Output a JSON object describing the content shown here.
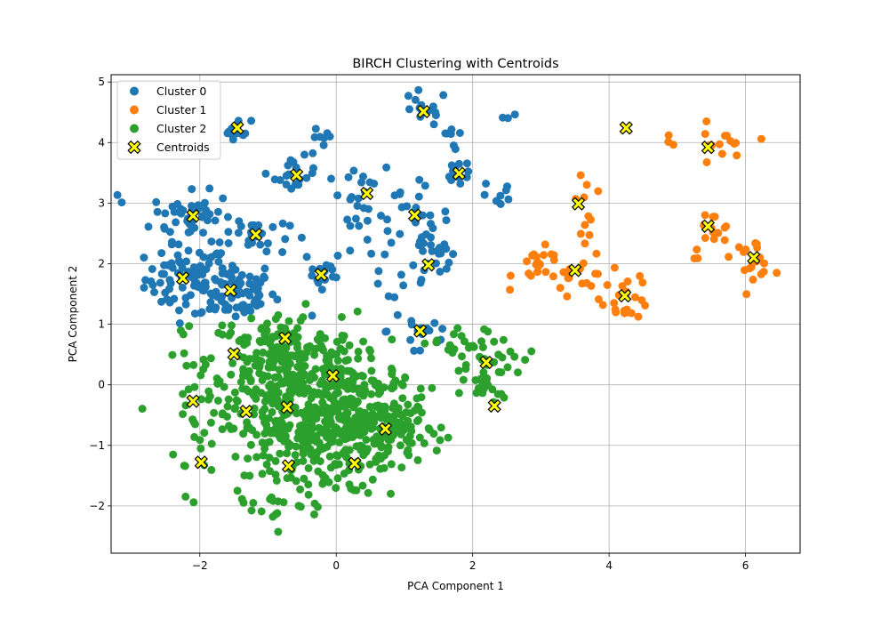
{
  "chart_data": {
    "type": "scatter",
    "title": "BIRCH Clustering with Centroids",
    "xlabel": "PCA Component 1",
    "ylabel": "PCA Component 2",
    "xlim": [
      -3.3,
      6.8
    ],
    "ylim": [
      -2.78,
      5.12
    ],
    "xticks": [
      -2,
      0,
      2,
      4,
      6
    ],
    "yticks": [
      -2,
      -1,
      0,
      1,
      2,
      3,
      4,
      5
    ],
    "grid": true,
    "legend_position": "top-left",
    "series": [
      {
        "name": "Cluster 0",
        "color": "#1f77b4",
        "groups": [
          {
            "cx": -2.2,
            "cy": 1.75,
            "sx": 0.3,
            "sy": 0.28,
            "n": 70
          },
          {
            "cx": -1.5,
            "cy": 1.55,
            "sx": 0.3,
            "sy": 0.25,
            "n": 80
          },
          {
            "cx": -2.1,
            "cy": 2.78,
            "sx": 0.3,
            "sy": 0.2,
            "n": 55
          },
          {
            "cx": -1.2,
            "cy": 2.48,
            "sx": 0.25,
            "sy": 0.18,
            "n": 25
          },
          {
            "cx": -1.45,
            "cy": 4.22,
            "sx": 0.1,
            "sy": 0.08,
            "n": 14
          },
          {
            "cx": -0.6,
            "cy": 3.45,
            "sx": 0.15,
            "sy": 0.15,
            "n": 18
          },
          {
            "cx": -0.2,
            "cy": 1.82,
            "sx": 0.15,
            "sy": 0.2,
            "n": 14
          },
          {
            "cx": 0.45,
            "cy": 3.15,
            "sx": 0.3,
            "sy": 0.2,
            "n": 22
          },
          {
            "cx": 1.15,
            "cy": 2.8,
            "sx": 0.25,
            "sy": 0.25,
            "n": 22
          },
          {
            "cx": 1.35,
            "cy": 2.0,
            "sx": 0.25,
            "sy": 0.3,
            "n": 25
          },
          {
            "cx": 1.25,
            "cy": 0.9,
            "sx": 0.25,
            "sy": 0.3,
            "n": 18
          },
          {
            "cx": 1.8,
            "cy": 3.5,
            "sx": 0.12,
            "sy": 0.12,
            "n": 16
          },
          {
            "cx": 1.25,
            "cy": 4.55,
            "sx": 0.2,
            "sy": 0.15,
            "n": 14
          },
          {
            "cx": -0.25,
            "cy": 4.0,
            "sx": 0.1,
            "sy": 0.12,
            "n": 8
          },
          {
            "cx": 2.4,
            "cy": 3.1,
            "sx": 0.15,
            "sy": 0.15,
            "n": 8
          },
          {
            "cx": 0.4,
            "cy": 2.0,
            "sx": 0.25,
            "sy": 0.35,
            "n": 12
          },
          {
            "cx": 1.7,
            "cy": 4.2,
            "sx": 0.1,
            "sy": 0.15,
            "n": 6
          },
          {
            "cx": -3.2,
            "cy": 3.15,
            "sx": 0.05,
            "sy": 0.05,
            "n": 1
          },
          {
            "cx": 2.5,
            "cy": 4.35,
            "sx": 0.08,
            "sy": 0.08,
            "n": 3
          }
        ]
      },
      {
        "name": "Cluster 1",
        "color": "#ff7f0e",
        "groups": [
          {
            "cx": 3.0,
            "cy": 1.95,
            "sx": 0.2,
            "sy": 0.15,
            "n": 20
          },
          {
            "cx": 3.6,
            "cy": 1.8,
            "sx": 0.2,
            "sy": 0.2,
            "n": 14
          },
          {
            "cx": 4.25,
            "cy": 1.45,
            "sx": 0.18,
            "sy": 0.18,
            "n": 24
          },
          {
            "cx": 3.75,
            "cy": 2.6,
            "sx": 0.15,
            "sy": 0.25,
            "n": 8
          },
          {
            "cx": 5.5,
            "cy": 2.5,
            "sx": 0.15,
            "sy": 0.2,
            "n": 16
          },
          {
            "cx": 6.1,
            "cy": 2.1,
            "sx": 0.15,
            "sy": 0.15,
            "n": 20
          },
          {
            "cx": 5.6,
            "cy": 3.9,
            "sx": 0.2,
            "sy": 0.2,
            "n": 14
          },
          {
            "cx": 4.9,
            "cy": 4.0,
            "sx": 0.05,
            "sy": 0.08,
            "n": 3
          },
          {
            "cx": 3.6,
            "cy": 3.15,
            "sx": 0.12,
            "sy": 0.18,
            "n": 4
          }
        ]
      },
      {
        "name": "Cluster 2",
        "color": "#2ca02c",
        "groups": [
          {
            "cx": -0.8,
            "cy": 0.4,
            "sx": 0.55,
            "sy": 0.4,
            "n": 220
          },
          {
            "cx": -0.6,
            "cy": -0.7,
            "sx": 0.55,
            "sy": 0.55,
            "n": 280
          },
          {
            "cx": 0.3,
            "cy": -0.55,
            "sx": 0.45,
            "sy": 0.5,
            "n": 220
          },
          {
            "cx": 0.75,
            "cy": -0.75,
            "sx": 0.3,
            "sy": 0.3,
            "n": 90
          },
          {
            "cx": -2.1,
            "cy": -0.6,
            "sx": 0.12,
            "sy": 0.6,
            "n": 25
          },
          {
            "cx": 2.2,
            "cy": 0.3,
            "sx": 0.3,
            "sy": 0.3,
            "n": 45
          },
          {
            "cx": 1.8,
            "cy": 0.7,
            "sx": 0.2,
            "sy": 0.15,
            "n": 15
          },
          {
            "cx": -1.0,
            "cy": -1.9,
            "sx": 0.3,
            "sy": 0.2,
            "n": 10
          },
          {
            "cx": -2.85,
            "cy": -0.4,
            "sx": 0.03,
            "sy": 0.03,
            "n": 1
          },
          {
            "cx": 1.2,
            "cy": -0.3,
            "sx": 0.05,
            "sy": 0.05,
            "n": 2
          }
        ]
      }
    ],
    "centroids": {
      "name": "Centroids",
      "color": "#ffff00",
      "edgecolor": "#000000",
      "marker": "X",
      "points": [
        [
          -1.45,
          4.24
        ],
        [
          1.28,
          4.51
        ],
        [
          4.25,
          4.24
        ],
        [
          5.45,
          3.92
        ],
        [
          -0.58,
          3.46
        ],
        [
          1.8,
          3.49
        ],
        [
          0.45,
          3.16
        ],
        [
          3.55,
          2.99
        ],
        [
          -2.1,
          2.79
        ],
        [
          1.15,
          2.8
        ],
        [
          5.45,
          2.62
        ],
        [
          -1.18,
          2.48
        ],
        [
          6.12,
          2.1
        ],
        [
          1.35,
          1.98
        ],
        [
          3.5,
          1.89
        ],
        [
          -0.22,
          1.82
        ],
        [
          -2.25,
          1.76
        ],
        [
          -1.55,
          1.56
        ],
        [
          4.23,
          1.47
        ],
        [
          1.23,
          0.89
        ],
        [
          -0.75,
          0.77
        ],
        [
          -1.5,
          0.51
        ],
        [
          2.2,
          0.37
        ],
        [
          -0.05,
          0.15
        ],
        [
          -2.1,
          -0.27
        ],
        [
          -0.72,
          -0.37
        ],
        [
          2.32,
          -0.35
        ],
        [
          -1.32,
          -0.44
        ],
        [
          0.72,
          -0.73
        ],
        [
          -1.98,
          -1.28
        ],
        [
          0.27,
          -1.3
        ],
        [
          -0.7,
          -1.34
        ]
      ]
    }
  }
}
